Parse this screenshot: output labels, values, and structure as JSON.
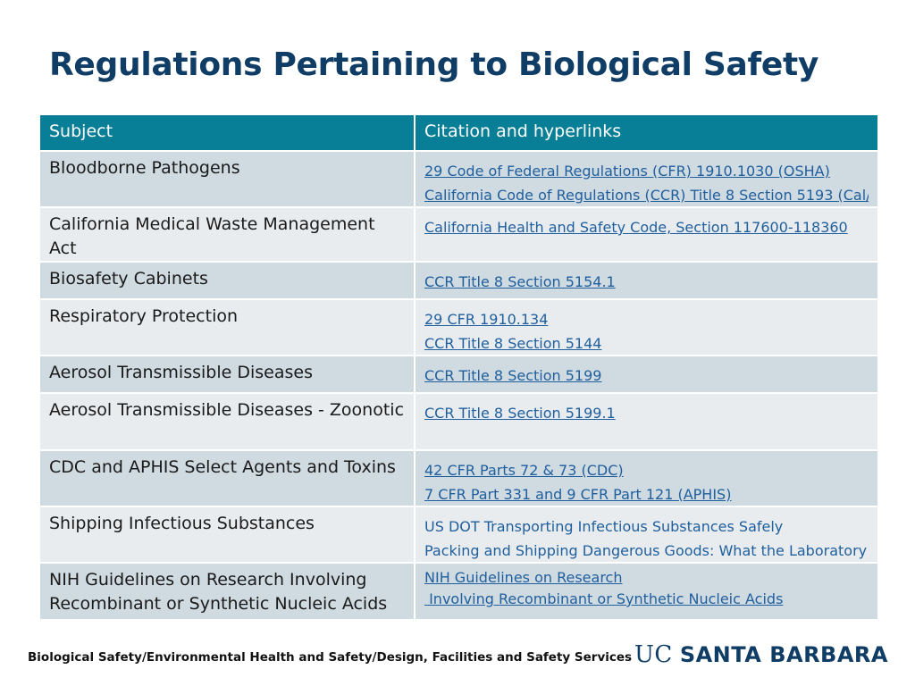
{
  "title": "Regulations Pertaining to Biological Safety",
  "table": {
    "headers": [
      "Subject",
      "Citation and hyperlinks"
    ],
    "rows": [
      {
        "subject": "Bloodborne Pathogens",
        "citations": [
          {
            "text": "29 Code of Federal Regulations (CFR) 1910.1030 (OSHA)",
            "link": true
          },
          {
            "text": "California Code of Regulations (CCR) Title 8 Section 5193 (Cal/",
            "link": true
          }
        ]
      },
      {
        "subject": "California Medical Waste Management Act",
        "citations": [
          {
            "text": "California Health and Safety Code, Section 117600-118360",
            "link": true
          }
        ]
      },
      {
        "subject": "Biosafety Cabinets",
        "citations": [
          {
            "text": "CCR Title 8 Section 5154.1",
            "link": true
          }
        ]
      },
      {
        "subject": "Respiratory Protection",
        "citations": [
          {
            "text": "29 CFR 1910.134",
            "link": true
          },
          {
            "text": "CCR Title 8 Section 5144",
            "link": true
          }
        ]
      },
      {
        "subject": "Aerosol Transmissible Diseases",
        "citations": [
          {
            "text": "CCR Title 8 Section 5199",
            "link": true
          }
        ]
      },
      {
        "subject": "Aerosol Transmissible Diseases - Zoonotic",
        "citations": [
          {
            "text": "CCR Title 8 Section 5199.1",
            "link": true
          }
        ]
      },
      {
        "subject": "CDC and APHIS Select Agents and Toxins",
        "citations": [
          {
            "text": "42 CFR Parts 72 & 73 (CDC)",
            "link": true
          },
          {
            "text": "7 CFR Part 331 and 9 CFR Part 121 (APHIS)",
            "link": true
          }
        ]
      },
      {
        "subject": "Shipping Infectious Substances",
        "citations": [
          {
            "text": "US DOT Transporting Infectious Substances Safely",
            "link": false
          },
          {
            "text": "Packing and Shipping Dangerous Goods: What the Laboratory",
            "link": false
          }
        ]
      },
      {
        "subject": "NIH Guidelines on Research Involving Recombinant or Synthetic Nucleic Acids",
        "citations": [
          {
            "text": "NIH Guidelines on Research",
            "link": true
          },
          {
            "text": " Involving Recombinant or Synthetic Nucleic Acids",
            "link": true
          }
        ]
      }
    ]
  },
  "footer": {
    "department": "Biological Safety/Environmental Health and Safety/Design, Facilities and Safety Services",
    "logo_uc": "UC",
    "logo_name": "SANTA BARBARA"
  },
  "colors": {
    "title": "#0f3d66",
    "header_bg": "#087f96",
    "row_dark": "#cfdae1",
    "row_light": "#e8ecef",
    "link": "#1f5f9e"
  }
}
